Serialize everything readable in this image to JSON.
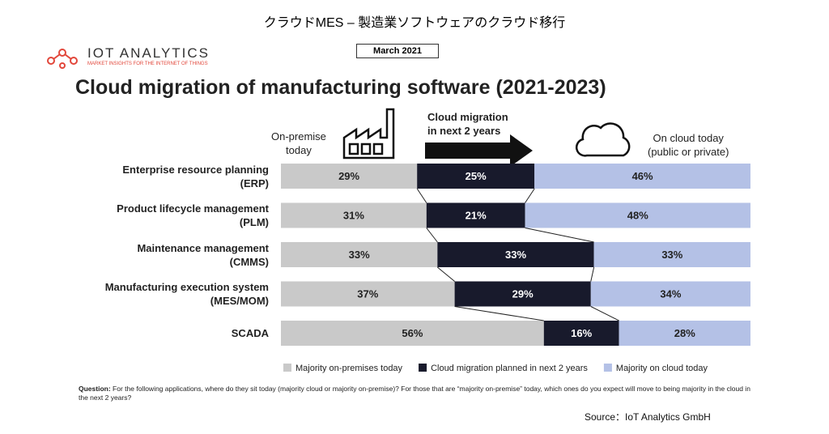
{
  "page_title": "クラウドMES – 製造業ソフトウェアのクラウド移行",
  "logo": {
    "name": "IOT ANALYTICS",
    "tagline": "MARKET INSIGHTS FOR THE INTERNET OF THINGS"
  },
  "date": "March 2021",
  "chart_data": {
    "type": "bar",
    "orientation": "horizontal",
    "stacked": true,
    "title": "Cloud migration of manufacturing software (2021-2023)",
    "column_headers": [
      "On-premise\ntoday",
      "Cloud migration\nin next 2 years",
      "On cloud today\n(public or private)"
    ],
    "categories": [
      "Enterprise resource planning\n(ERP)",
      "Product lifecycle management\n(PLM)",
      "Maintenance management\n(CMMS)",
      "Manufacturing execution system\n(MES/MOM)",
      "SCADA"
    ],
    "series": [
      {
        "name": "Majority on-premises today",
        "color": "#c9c9c9",
        "values": [
          29,
          31,
          33,
          37,
          56
        ],
        "value_labels": [
          "29%",
          "31%",
          "33%",
          "37%",
          "56%"
        ]
      },
      {
        "name": "Cloud migration planned in next 2 years",
        "color": "#181a2c",
        "values": [
          25,
          21,
          33,
          29,
          16
        ],
        "value_labels": [
          "25%",
          "21%",
          "33%",
          "29%",
          "16%"
        ]
      },
      {
        "name": "Majority on cloud today",
        "color": "#b4c1e6",
        "values": [
          46,
          48,
          33,
          34,
          28
        ],
        "value_labels": [
          "46%",
          "48%",
          "33%",
          "34%",
          "28%"
        ]
      }
    ],
    "question_label": "Question:",
    "question": "For the following applications, where do they sit today (majority cloud or majority on-premise)? For those that are “majority on-premise” today, which ones do you expect will move to being majority in the cloud in the next 2 years?"
  },
  "source": "Source：IoT Analytics GmbH"
}
